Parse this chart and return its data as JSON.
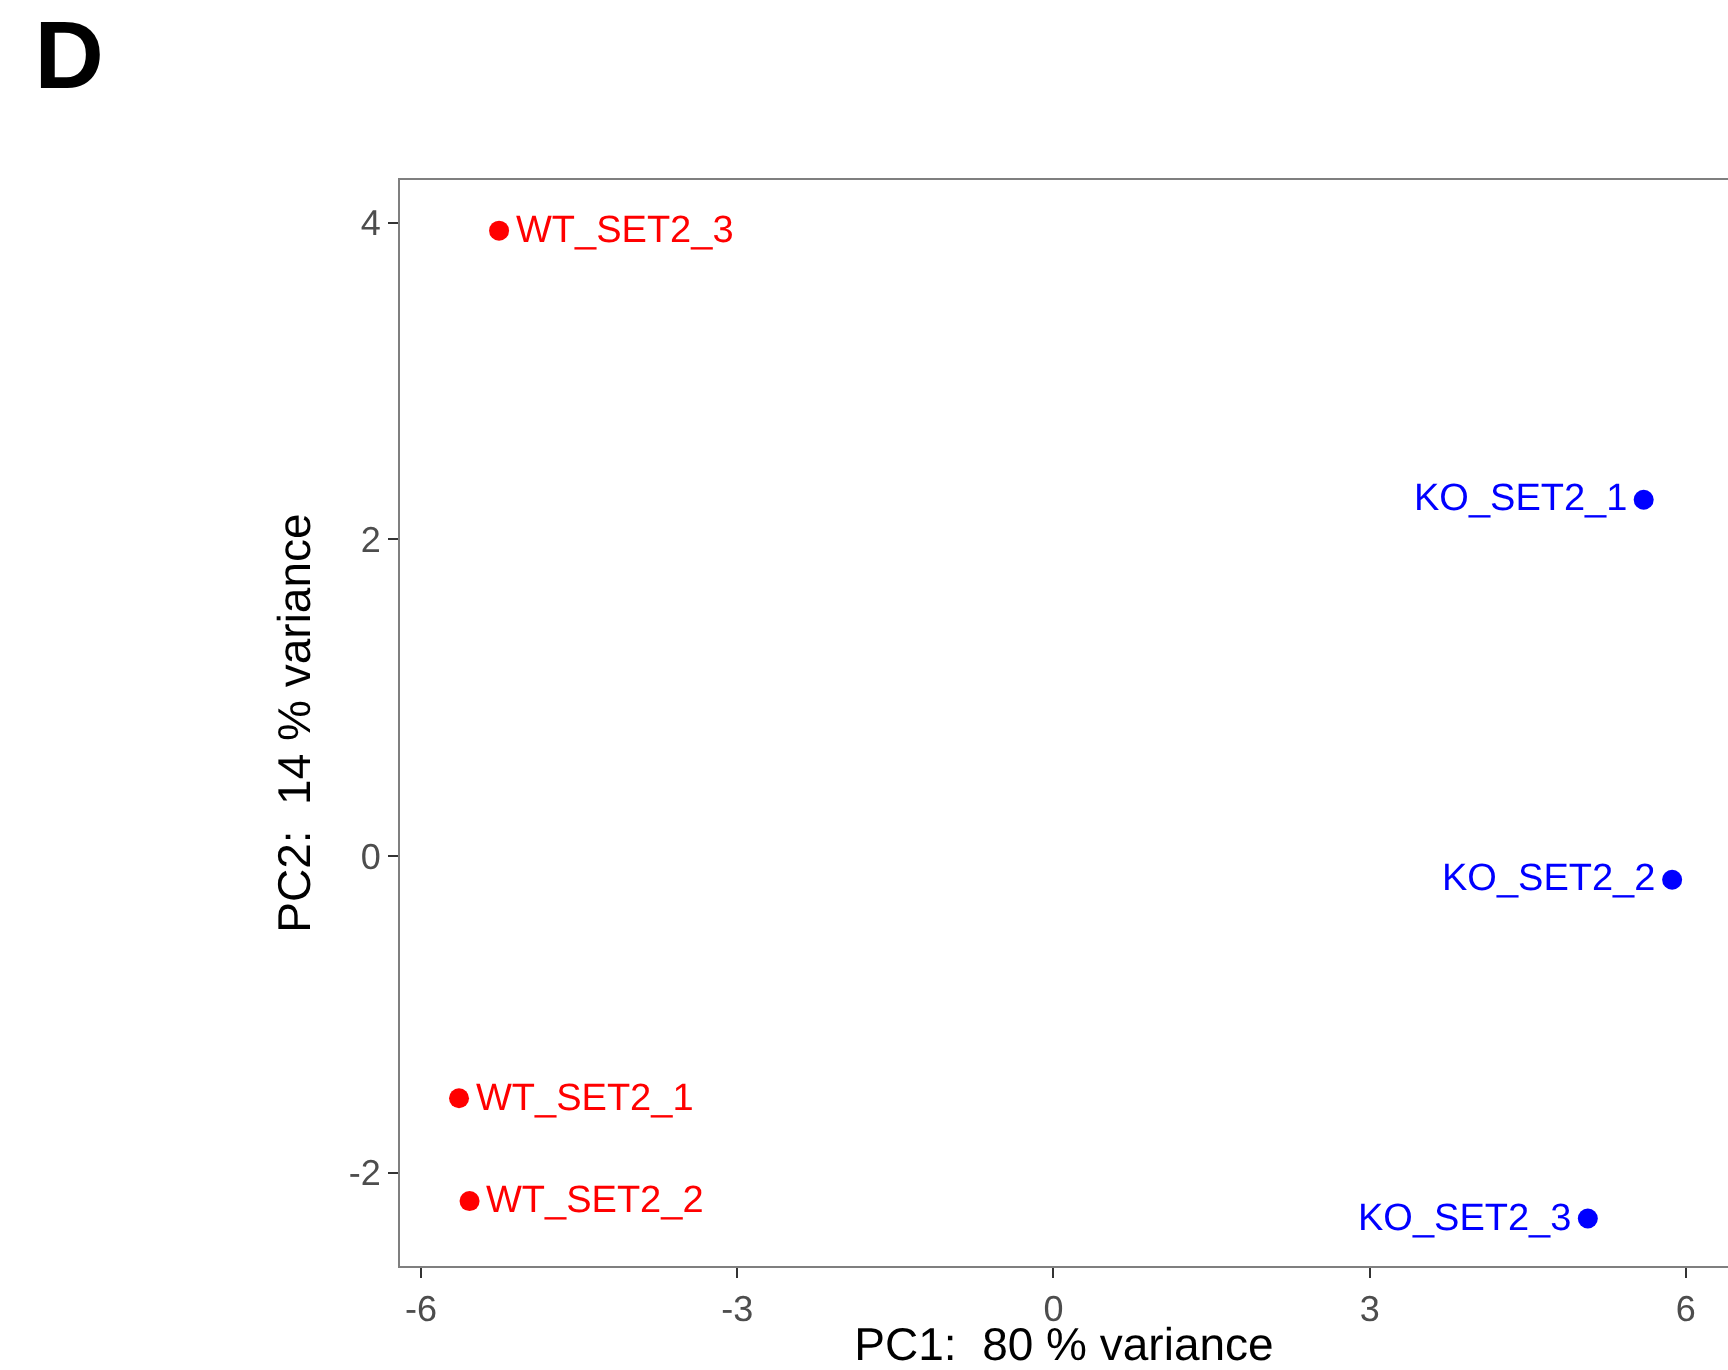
{
  "chart_data": {
    "type": "scatter",
    "title": "D",
    "xlabel": "PC1:  80 % variance",
    "ylabel": "PC2:  14 % variance",
    "series": [
      {
        "color": "#ff0000",
        "x": [
          -5.64,
          -5.54,
          -5.26
        ],
        "values": [
          -1.53,
          -2.18,
          3.95
        ]
      },
      {
        "color": "#0000ff",
        "x": [
          5.6,
          5.87,
          5.07
        ],
        "values": [
          2.25,
          -0.15,
          -2.29
        ]
      }
    ],
    "annotations": [
      {
        "text": "WT_SET2_1",
        "x": -5.64,
        "y": -1.53
      },
      {
        "text": "WT_SET2_2",
        "x": -5.54,
        "y": -2.18
      },
      {
        "text": "WT_SET2_3",
        "x": -5.26,
        "y": 3.95
      },
      {
        "text": "KO_SET2_1",
        "x": 5.6,
        "y": 2.25
      },
      {
        "text": "KO_SET2_2",
        "x": 5.87,
        "y": -0.15
      },
      {
        "text": "KO_SET2_3",
        "x": 5.07,
        "y": -2.29
      }
    ],
    "xlim": [
      -6.2,
      6.4
    ],
    "ylim": [
      -2.59,
      4.27
    ],
    "xticks": [
      -6,
      -3,
      0,
      3,
      6
    ],
    "yticks": [
      -2,
      0,
      2,
      4
    ],
    "grid": false,
    "marker": "circle"
  }
}
